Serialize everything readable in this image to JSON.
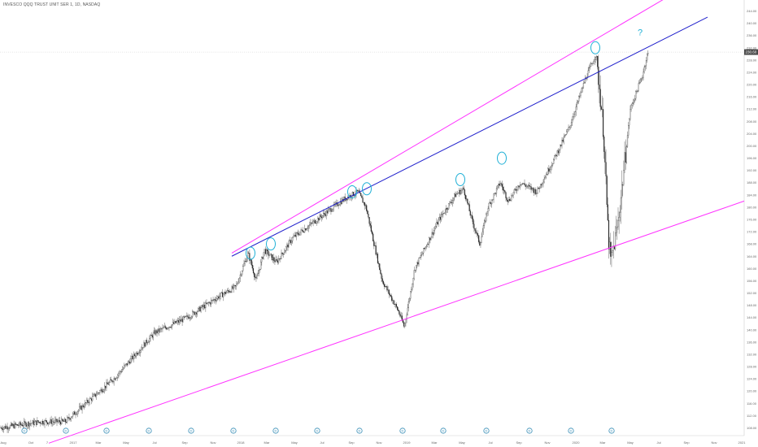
{
  "chart_data": {
    "type": "candlestick",
    "title": "INVESCO QQQ TRUST UNIT SER 1, 1D, NASDAQ",
    "current_price_label": "230.60",
    "y_ticks": [
      "244.00",
      "240.00",
      "236.00",
      "232.00",
      "228.00",
      "224.00",
      "220.00",
      "216.00",
      "212.00",
      "208.00",
      "204.00",
      "200.00",
      "196.00",
      "192.00",
      "188.00",
      "184.00",
      "180.00",
      "176.00",
      "172.00",
      "168.00",
      "164.00",
      "160.00",
      "156.00",
      "152.00",
      "148.00",
      "144.00",
      "140.00",
      "136.00",
      "132.00",
      "128.00",
      "124.00",
      "120.00",
      "116.00",
      "112.00",
      "108.00"
    ],
    "x_ticks": [
      "Aug",
      "Oct",
      "7",
      "2017",
      "Mar",
      "May",
      "Jul",
      "Sep",
      "Nov",
      "2018",
      "Mar",
      "May",
      "Jul",
      "Sep",
      "Nov",
      "2019",
      "Mar",
      "May",
      "Jul",
      "Sep",
      "Nov",
      "2020",
      "Mar",
      "May",
      "Jul",
      "Sep",
      "Nov",
      "2021"
    ],
    "event_markers": [
      "D",
      "D",
      "D",
      "D",
      "D",
      "D",
      "D",
      "D",
      "D",
      "D",
      "D",
      "D",
      "D",
      "D",
      "D"
    ],
    "annotation_question": "?",
    "price_path": [
      [
        0,
        108
      ],
      [
        50,
        110
      ],
      [
        80,
        110
      ],
      [
        110,
        117
      ],
      [
        140,
        124
      ],
      [
        190,
        139
      ],
      [
        230,
        144
      ],
      [
        270,
        151
      ],
      [
        290,
        154
      ],
      [
        305,
        165
      ],
      [
        315,
        156
      ],
      [
        325,
        166
      ],
      [
        340,
        162
      ],
      [
        360,
        170
      ],
      [
        390,
        176
      ],
      [
        425,
        183
      ],
      [
        440,
        185
      ],
      [
        450,
        180
      ],
      [
        470,
        156
      ],
      [
        490,
        146
      ],
      [
        497,
        141
      ],
      [
        510,
        160
      ],
      [
        540,
        176
      ],
      [
        560,
        184
      ],
      [
        570,
        186
      ],
      [
        580,
        176
      ],
      [
        590,
        168
      ],
      [
        600,
        180
      ],
      [
        615,
        188
      ],
      [
        625,
        182
      ],
      [
        640,
        188
      ],
      [
        660,
        185
      ],
      [
        680,
        195
      ],
      [
        700,
        206
      ],
      [
        720,
        222
      ],
      [
        733,
        230
      ],
      [
        742,
        205
      ],
      [
        748,
        170
      ],
      [
        751,
        162
      ],
      [
        760,
        175
      ],
      [
        775,
        212
      ],
      [
        790,
        223
      ],
      [
        796,
        230
      ]
    ],
    "trendlines": [
      {
        "color": "#ff33ff",
        "from": [
          285,
          165
        ],
        "to": [
          862,
          255
        ]
      },
      {
        "color": "#2020cc",
        "from": [
          285,
          164
        ],
        "to": [
          870,
          242
        ]
      },
      {
        "color": "#ff33ff",
        "from": [
          60,
          103
        ],
        "to": [
          915,
          182
        ]
      }
    ],
    "price_axis": {
      "min": 106,
      "max": 246
    },
    "ylim": [
      106,
      246
    ]
  }
}
